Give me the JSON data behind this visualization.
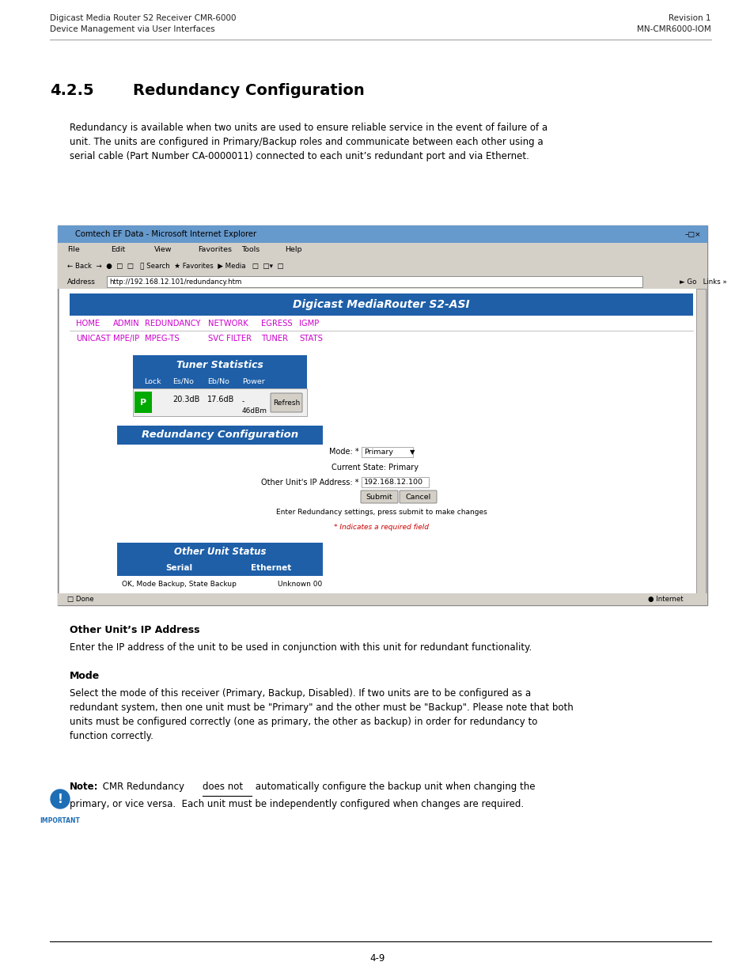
{
  "page_width": 9.54,
  "page_height": 12.35,
  "bg_color": "#ffffff",
  "header_left_line1": "Digicast Media Router S2 Receiver CMR-6000",
  "header_left_line2": "Device Management via User Interfaces",
  "header_right_line1": "Revision 1",
  "header_right_line2": "MN-CMR6000-IOM",
  "section_number": "4.2.5",
  "section_title": "Redundancy Configuration",
  "intro_text": "Redundancy is available when two units are used to ensure reliable service in the event of failure of a\nunit. The units are configured in Primary/Backup roles and communicate between each other using a\nserial cable (Part Number CA-0000011) connected to each unit’s redundant port and via Ethernet.",
  "footer_text": "4-9",
  "blue_header_color": "#1e5fa8",
  "nav_purple": "#cc00cc",
  "note_blue": "#1e6eb5",
  "red_asterisk": "#cc0000",
  "green_p": "#00aa00",
  "other_unit_ip_title": "Other Unit’s IP Address",
  "other_unit_ip_text": "Enter the IP address of the unit to be used in conjunction with this unit for redundant functionality.",
  "mode_title": "Mode",
  "mode_text": "Select the mode of this receiver (Primary, Backup, Disabled). If two units are to be configured as a\nredundant system, then one unit must be \"Primary\" and the other must be \"Backup\". Please note that both\nunits must be configured correctly (one as primary, the other as backup) in order for redundancy to\nfunction correctly."
}
